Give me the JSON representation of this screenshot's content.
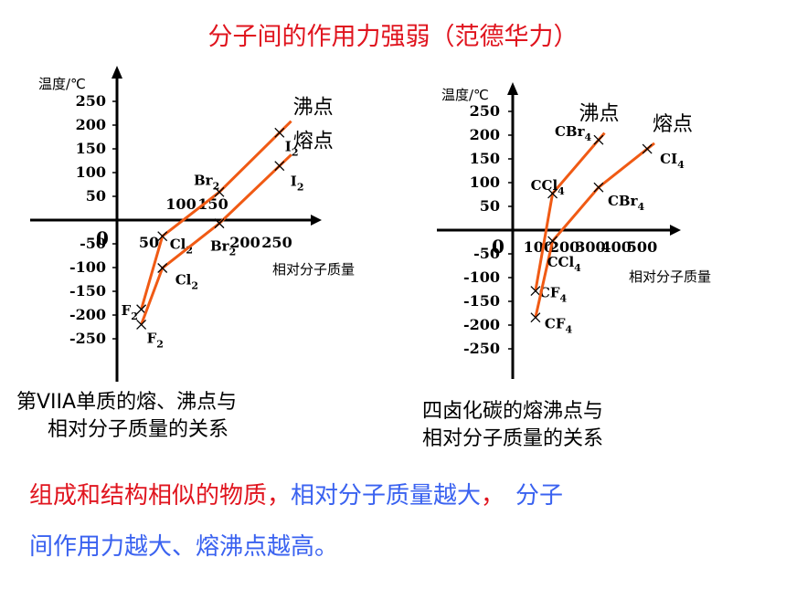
{
  "title": "分子间的作用力强弱（范德华力）",
  "chart_data": [
    {
      "type": "line",
      "ylabel": "温度/℃",
      "xlabel": "相对分子质量",
      "origin_label": "0",
      "y_ticks": [
        250,
        200,
        150,
        100,
        50,
        -50,
        -100,
        -150,
        -200,
        -250
      ],
      "x_ticks_top": [
        100,
        150
      ],
      "x_ticks_bottom": [
        50,
        200,
        250
      ],
      "xlim": [
        0,
        330
      ],
      "ylim": [
        -280,
        300
      ],
      "series": [
        {
          "name": "沸点",
          "x": [
            38,
            71,
            160,
            254
          ],
          "y": [
            -188,
            -34,
            59,
            184
          ],
          "point_labels": [
            "F2",
            "Cl2",
            "Br2",
            "I2"
          ]
        },
        {
          "name": "熔点",
          "x": [
            38,
            71,
            160,
            254
          ],
          "y": [
            -220,
            -101,
            -7,
            114
          ],
          "point_labels": [
            "F2",
            "Cl2",
            "Br2",
            "I2"
          ]
        }
      ],
      "caption": [
        "第VIIA单质的熔、沸点与",
        "相对分子质量的关系"
      ]
    },
    {
      "type": "line",
      "ylabel": "温度/℃",
      "xlabel": "相对分子质量",
      "origin_label": "0",
      "y_ticks": [
        250,
        200,
        150,
        100,
        50,
        -50,
        -100,
        -150,
        -200,
        -250
      ],
      "x_ticks": [
        "100",
        "200",
        "300",
        "400",
        "500"
      ],
      "xlim": [
        0,
        570
      ],
      "ylim": [
        -280,
        300
      ],
      "series": [
        {
          "name": "沸点",
          "x": [
            88,
            154,
            332
          ],
          "y": [
            -128,
            77,
            190
          ],
          "point_labels": [
            "CF4",
            "CCl4",
            "CBr4"
          ]
        },
        {
          "name": "熔点",
          "x": [
            88,
            154,
            332,
            520
          ],
          "y": [
            -184,
            -23,
            90,
            171
          ],
          "point_labels": [
            "CF4",
            "CCl4",
            "CBr4",
            "CI4"
          ]
        }
      ],
      "caption": [
        "四卤化碳的熔沸点与",
        "相对分子质量的关系"
      ]
    }
  ],
  "conclusion": {
    "part1": "组成和结构相似的物质，",
    "part2": "相对分子质量越大",
    "part3": "，",
    "part4": "分子",
    "line2": "间作用力越大、熔沸点越高。"
  },
  "colors": {
    "title": "#e0141e",
    "line": "#f05a14",
    "red_text": "#e0141e",
    "blue_text": "#3a62f0"
  }
}
